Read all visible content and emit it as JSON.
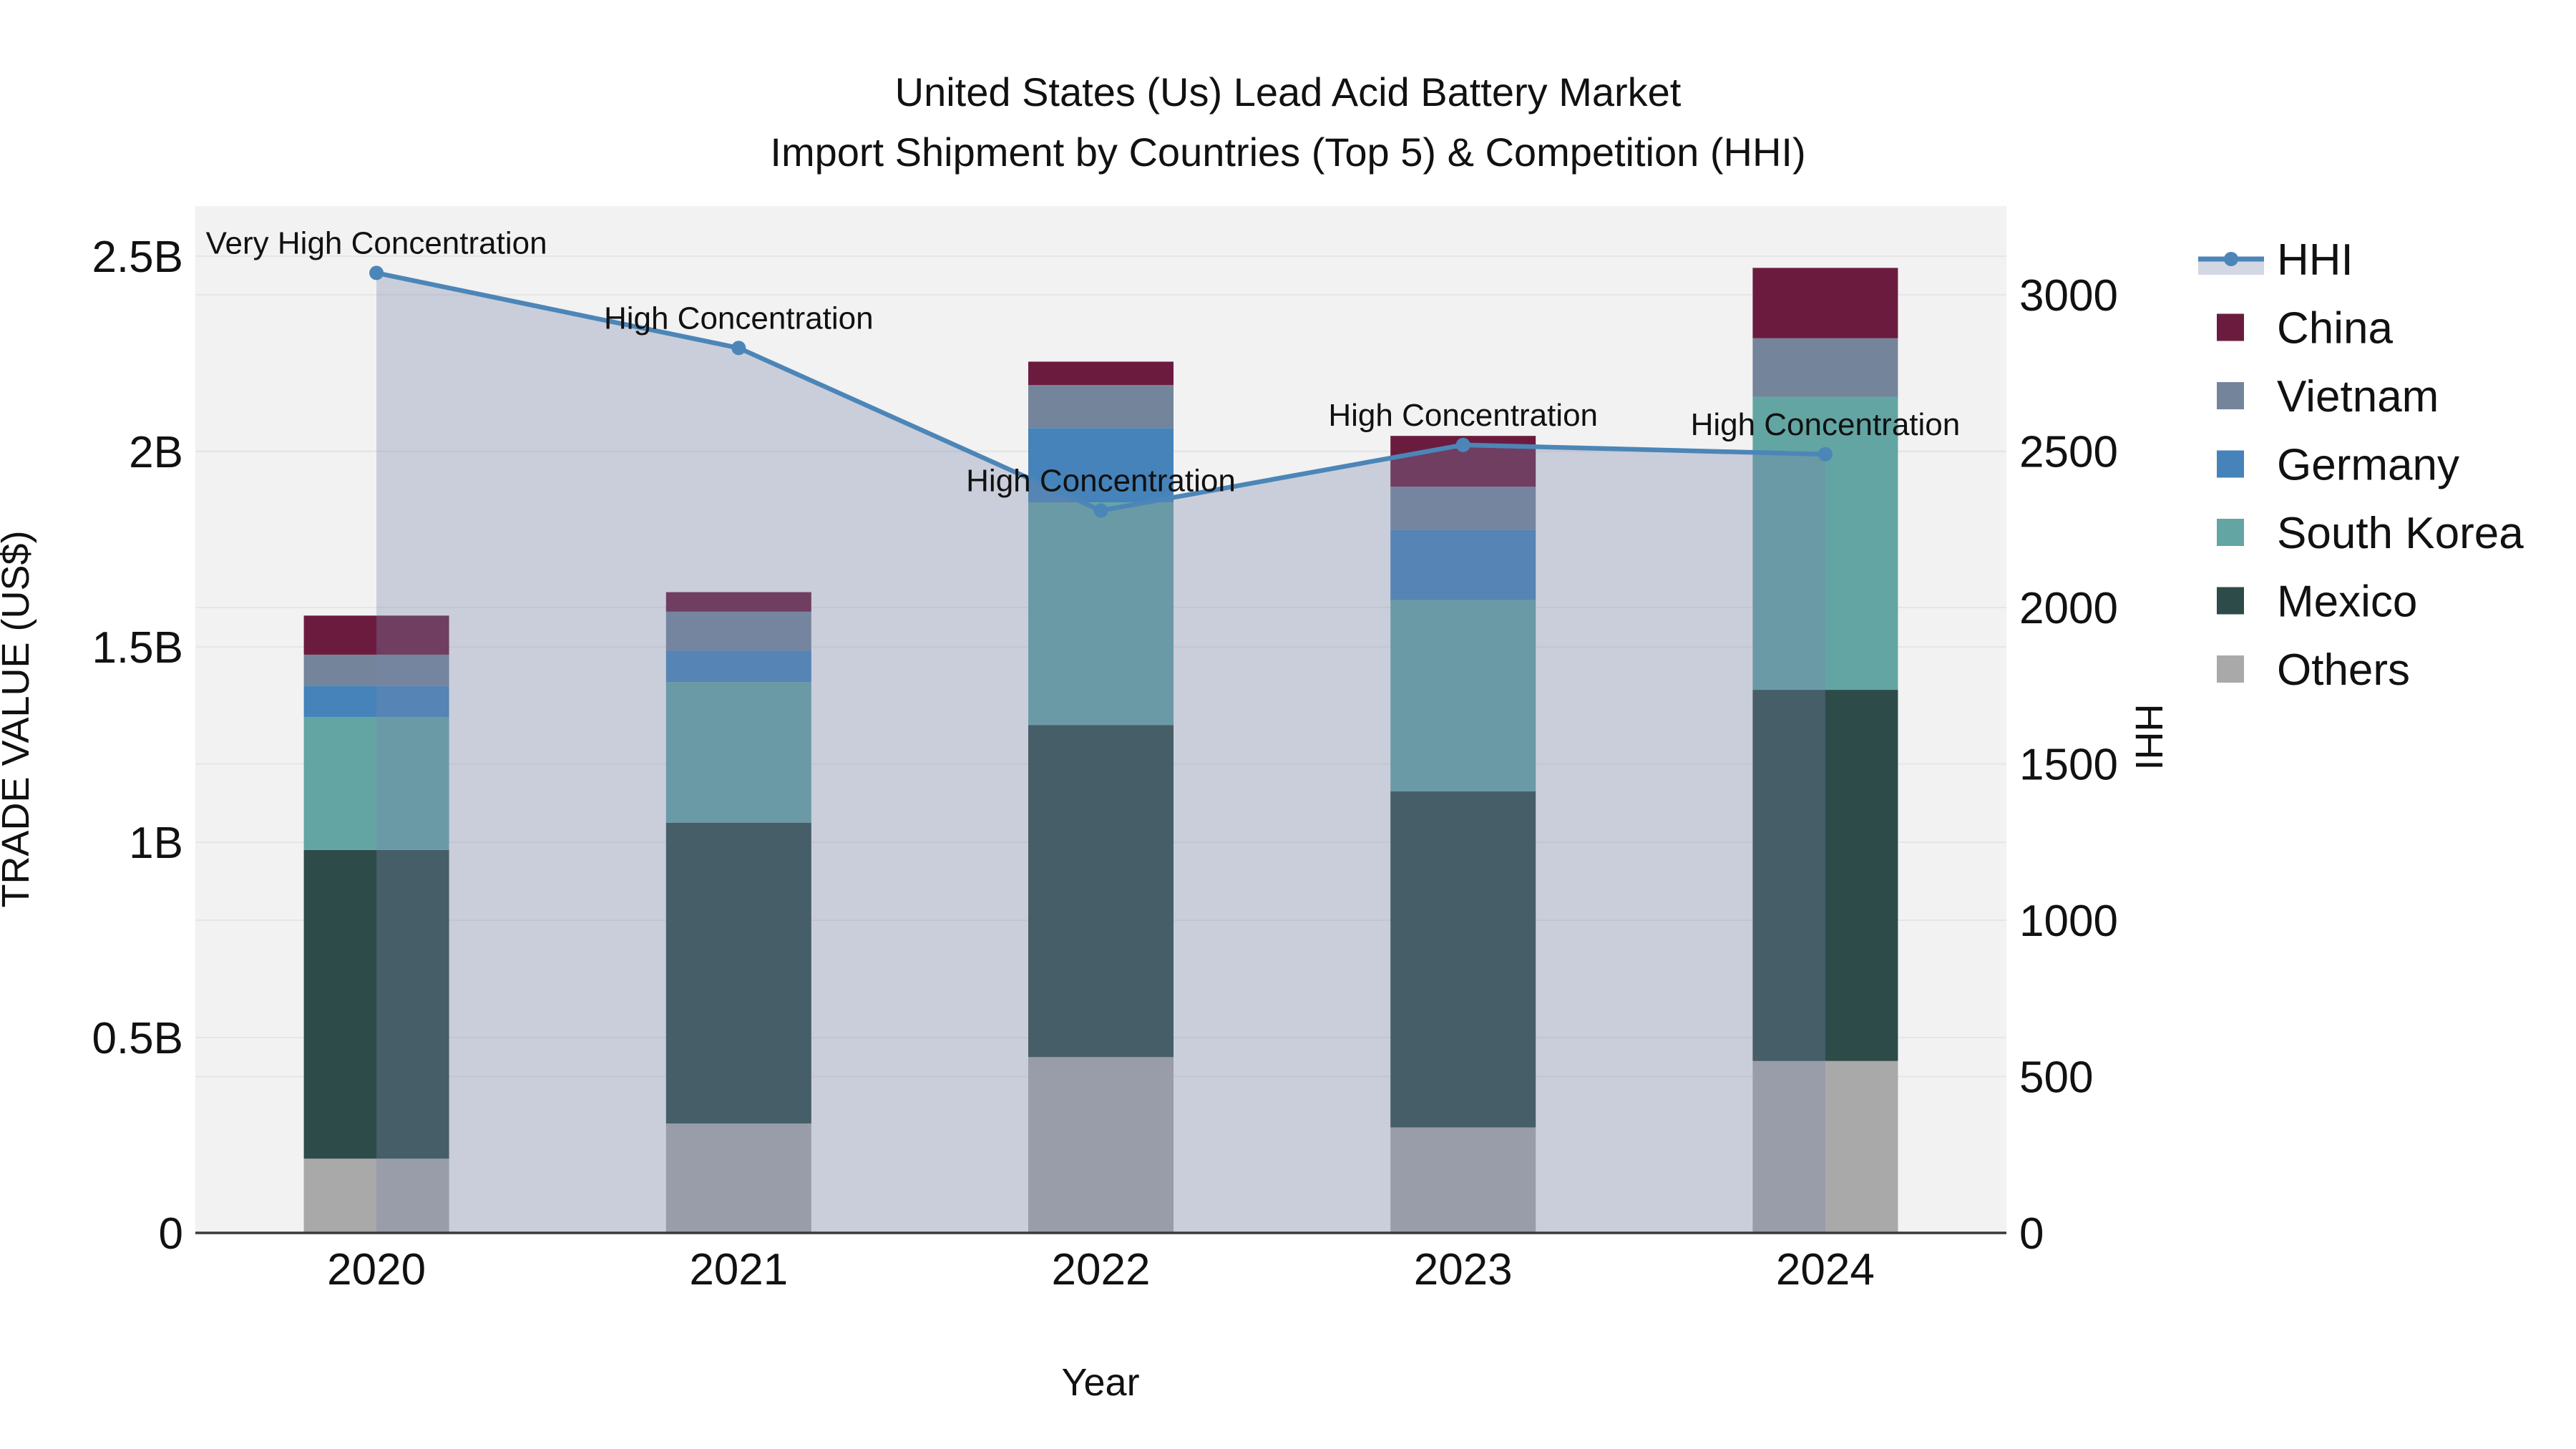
{
  "chart_data": {
    "type": "bar",
    "subtype": "stacked-bars-with-line-overlay",
    "title": {
      "line1": "United States (Us) Lead Acid Battery Market",
      "line2": "Import Shipment by Countries (Top 5) & Competition (HHI)"
    },
    "categories": [
      "2020",
      "2021",
      "2022",
      "2023",
      "2024"
    ],
    "value_unit": "billions of US$",
    "series": [
      {
        "name": "Others",
        "color": "#a9a9a9",
        "values": [
          0.19,
          0.28,
          0.45,
          0.27,
          0.44
        ]
      },
      {
        "name": "Mexico",
        "color": "#2d4b48",
        "values": [
          0.79,
          0.77,
          0.85,
          0.86,
          0.95
        ]
      },
      {
        "name": "South Korea",
        "color": "#63a5a3",
        "values": [
          0.34,
          0.36,
          0.57,
          0.49,
          0.75
        ]
      },
      {
        "name": "Germany",
        "color": "#4583ba",
        "values": [
          0.08,
          0.08,
          0.19,
          0.18,
          0
        ]
      },
      {
        "name": "Vietnam",
        "color": "#74859b",
        "values": [
          0.08,
          0.1,
          0.11,
          0.11,
          0.15
        ]
      },
      {
        "name": "China",
        "color": "#6b1c3e",
        "values": [
          0.1,
          0.05,
          0.06,
          0.13,
          0.18
        ]
      }
    ],
    "line_series": {
      "name": "HHI",
      "color": "#4c86b8",
      "area_fill": "rgba(120,135,170,0.33)",
      "values": [
        3070,
        2830,
        2310,
        2520,
        2490
      ]
    },
    "annotations": [
      "Very High Concentration",
      "High Concentration",
      "High Concentration",
      "High Concentration",
      "High Concentration"
    ],
    "left_axis": {
      "title": "TRADE VALUE (US$)",
      "tick_labels": [
        "0",
        "0.5B",
        "1B",
        "1.5B",
        "2B",
        "2.5B"
      ],
      "tick_values": [
        0,
        0.5,
        1,
        1.5,
        2,
        2.5
      ],
      "range": [
        0,
        2.63
      ]
    },
    "right_axis": {
      "title": "HHI",
      "tick_labels": [
        "0",
        "500",
        "1000",
        "1500",
        "2000",
        "2500",
        "3000"
      ],
      "tick_values": [
        0,
        500,
        1000,
        1500,
        2000,
        2500,
        3000
      ],
      "range": [
        0,
        3284
      ]
    },
    "x_axis": {
      "title": "Year"
    },
    "legend_order": [
      "HHI",
      "China",
      "Vietnam",
      "Germany",
      "South Korea",
      "Mexico",
      "Others"
    ],
    "legend_position": "right",
    "grid": true,
    "style": {
      "plot_bg": "#f2f2f2",
      "grid_color": "#e6e6e6",
      "axis_line_color": "#3a3a3a",
      "text_color": "#111111"
    }
  }
}
